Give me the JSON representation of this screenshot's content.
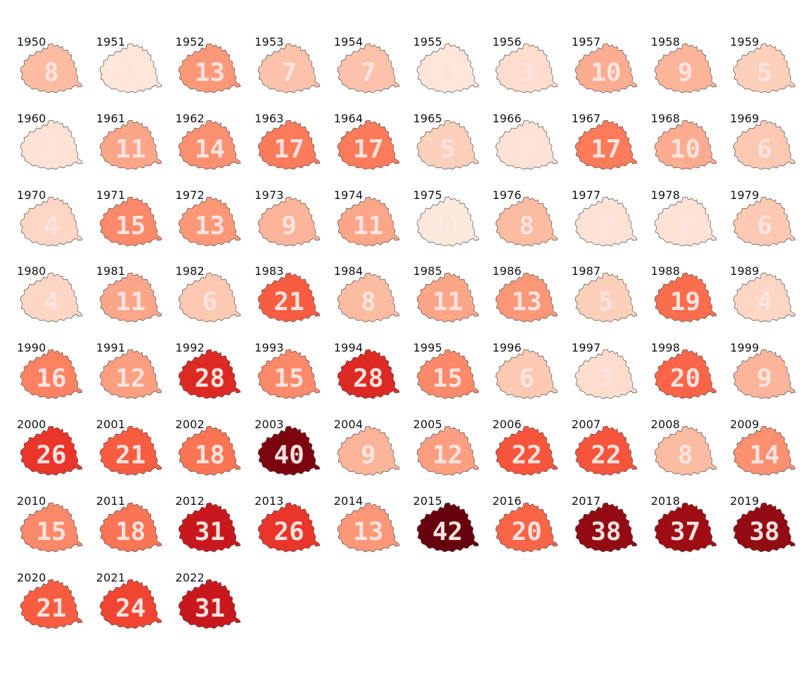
{
  "chart_data": {
    "type": "heatmap",
    "colors": {
      "low": "#fee0d2",
      "high": "#67000d"
    },
    "vmin": 0,
    "vmax": 42,
    "years": [
      "1950",
      "1951",
      "1952",
      "1953",
      "1954",
      "1955",
      "1956",
      "1957",
      "1958",
      "1959",
      "1960",
      "1961",
      "1962",
      "1963",
      "1964",
      "1965",
      "1966",
      "1967",
      "1968",
      "1969",
      "1970",
      "1971",
      "1972",
      "1973",
      "1974",
      "1975",
      "1976",
      "1977",
      "1978",
      "1979",
      "1980",
      "1981",
      "1982",
      "1983",
      "1984",
      "1985",
      "1986",
      "1987",
      "1988",
      "1989",
      "1990",
      "1991",
      "1992",
      "1993",
      "1994",
      "1995",
      "1996",
      "1997",
      "1998",
      "1999",
      "2000",
      "2001",
      "2002",
      "2003",
      "2004",
      "2005",
      "2006",
      "2007",
      "2008",
      "2009",
      "2010",
      "2011",
      "2012",
      "2013",
      "2014",
      "2015",
      "2016",
      "2017",
      "2018",
      "2019",
      "2020",
      "2021",
      "2022"
    ],
    "values": [
      8,
      1,
      13,
      7,
      7,
      1,
      3,
      10,
      9,
      5,
      2,
      11,
      14,
      17,
      17,
      5,
      2,
      17,
      10,
      6,
      4,
      15,
      13,
      9,
      11,
      0,
      8,
      2,
      2,
      6,
      4,
      11,
      6,
      21,
      8,
      11,
      13,
      5,
      19,
      4,
      16,
      12,
      28,
      15,
      28,
      15,
      6,
      3,
      20,
      9,
      26,
      21,
      18,
      40,
      9,
      12,
      22,
      22,
      8,
      14,
      15,
      18,
      31,
      26,
      13,
      42,
      20,
      38,
      37,
      38,
      21,
      24,
      31
    ]
  }
}
